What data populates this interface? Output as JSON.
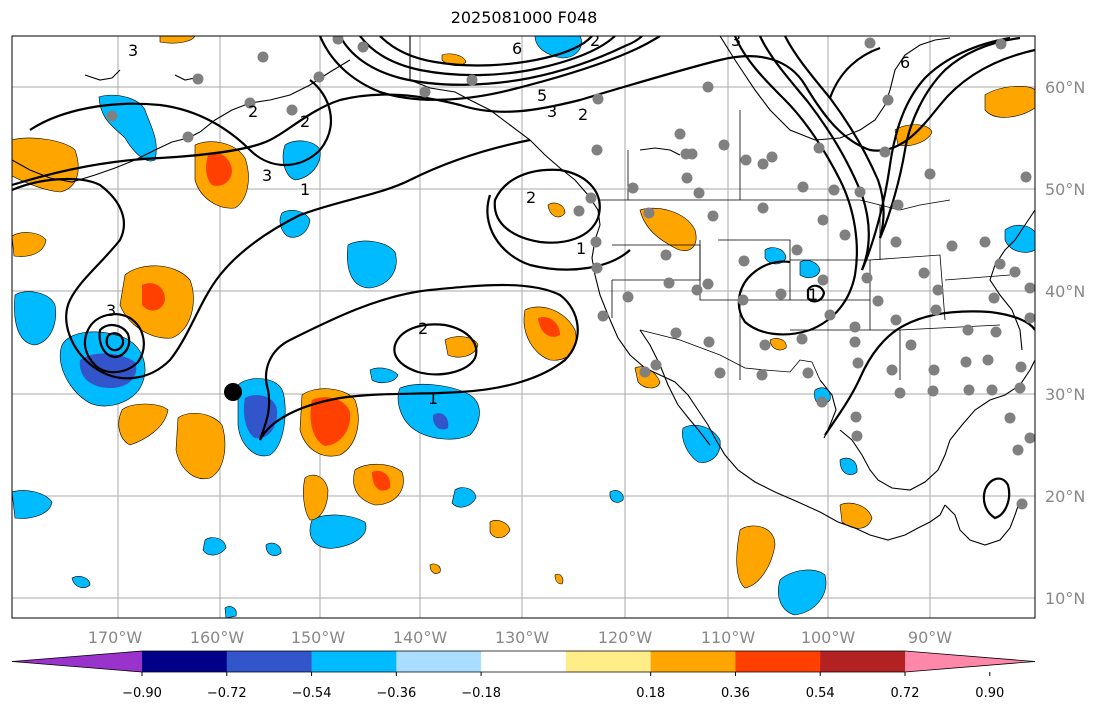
{
  "title": "2025081000 F048",
  "map": {
    "lat_labels": [
      "60°N",
      "50°N",
      "40°N",
      "30°N",
      "20°N",
      "10°N"
    ],
    "lon_labels": [
      "170°W",
      "160°W",
      "150°W",
      "140°W",
      "130°W",
      "120°W",
      "110°W",
      "100°W",
      "90°W"
    ],
    "contour_labels": [
      "3",
      "2",
      "1",
      "3",
      "1",
      "2",
      "2",
      "1",
      "3",
      "2",
      "1",
      "6",
      "5",
      "3",
      "2",
      "2",
      "3",
      "6"
    ]
  },
  "colorbar": {
    "ticks": [
      "−0.90",
      "−0.72",
      "−0.54",
      "−0.36",
      "−0.18",
      "0.18",
      "0.36",
      "0.54",
      "0.72",
      "0.90"
    ],
    "colors": [
      "#9933cc",
      "#000088",
      "#3355cc",
      "#00bbff",
      "#aaddff",
      "#ffffff",
      "#ffee88",
      "#ffa500",
      "#ff4000",
      "#b22222",
      "#ff88aa"
    ]
  }
}
